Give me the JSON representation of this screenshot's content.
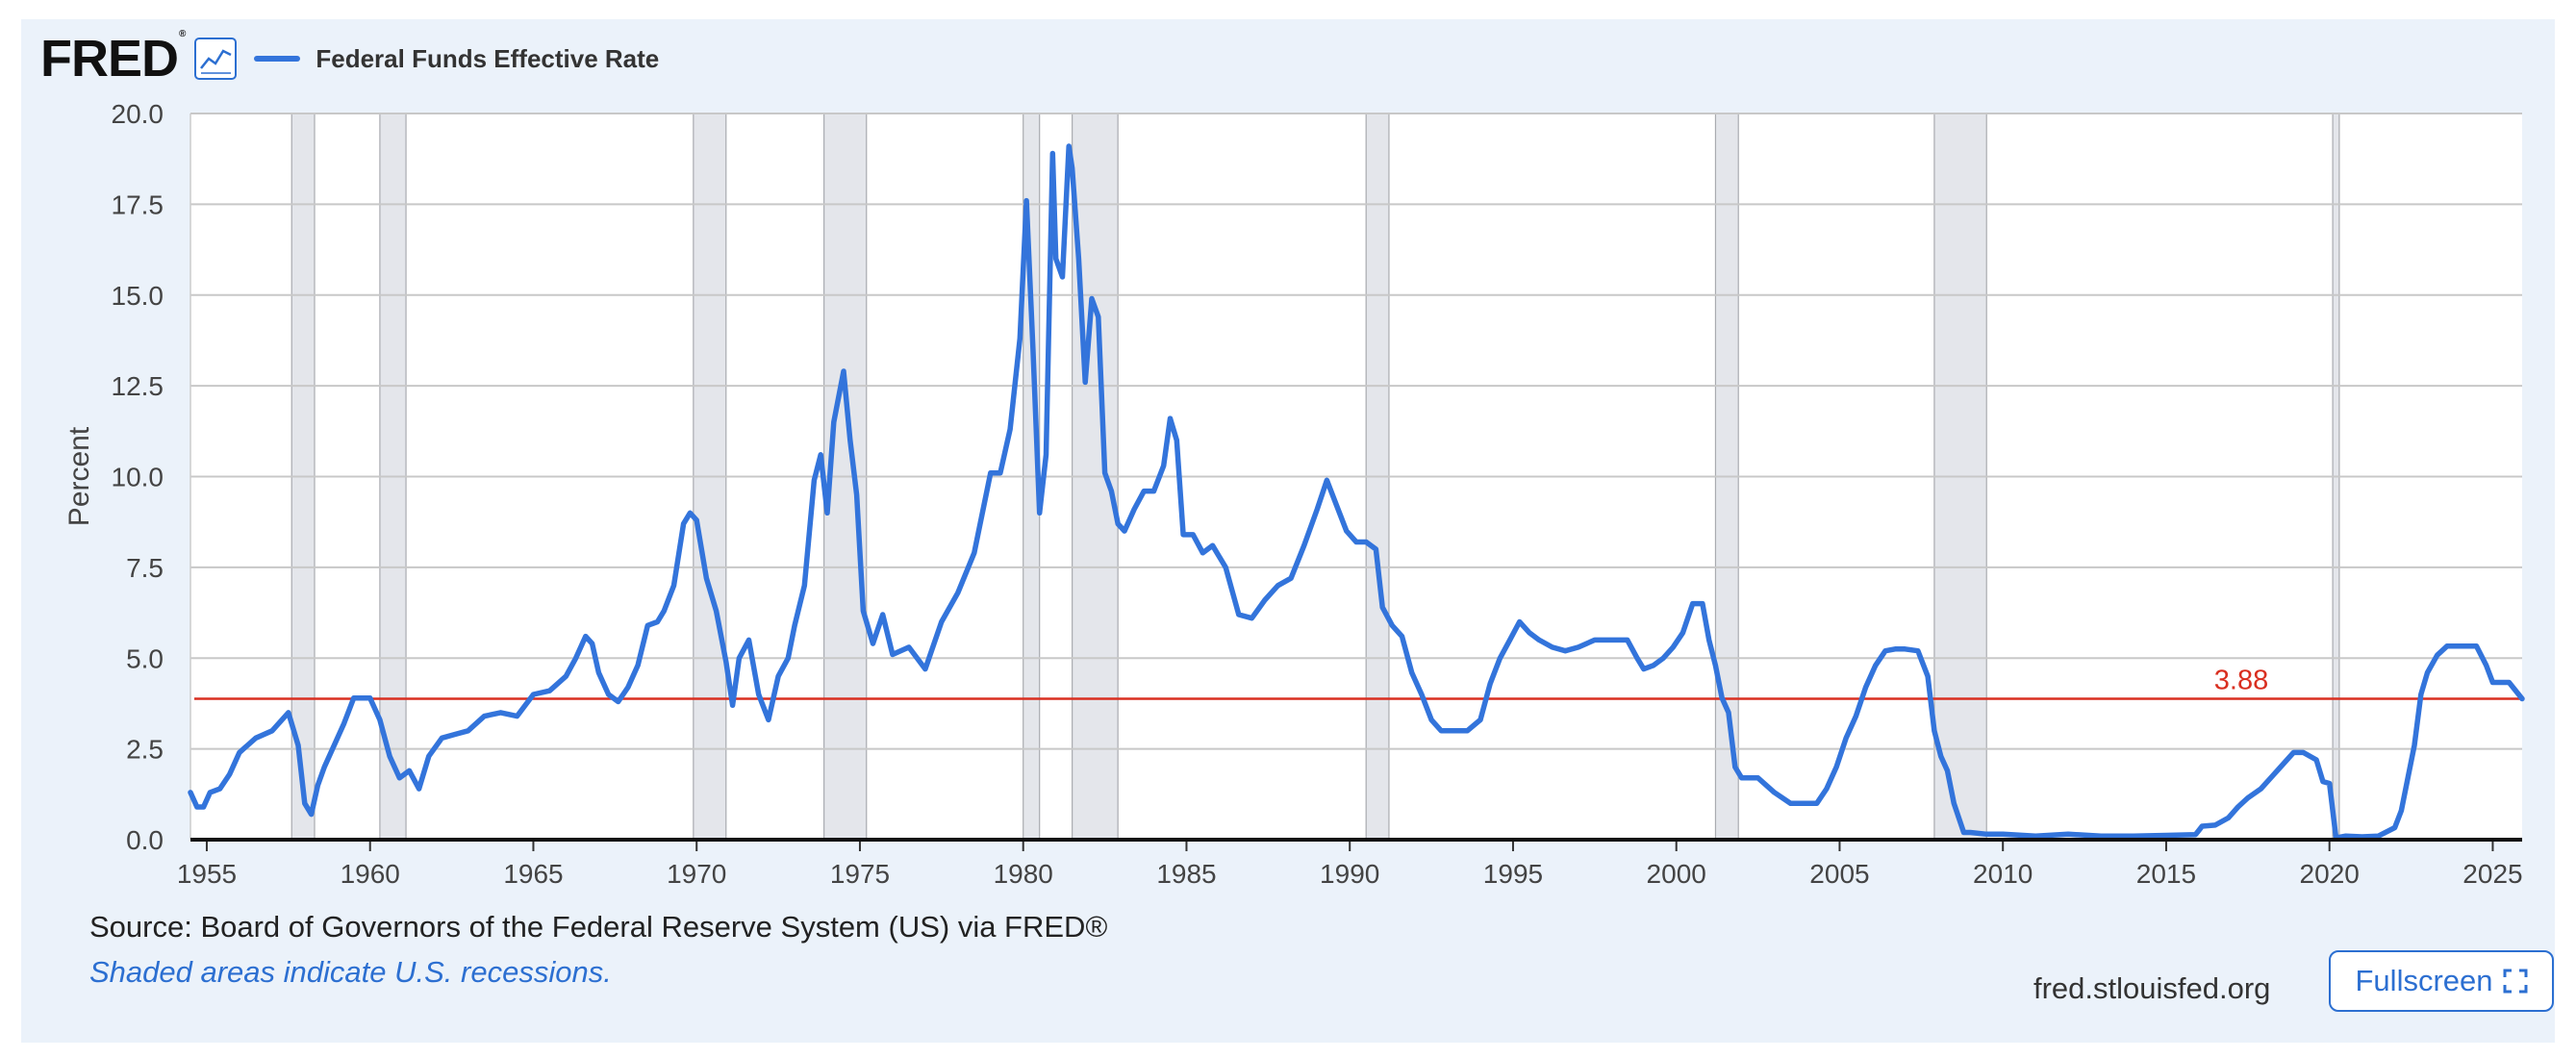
{
  "header": {
    "logo_text": "FRED",
    "logo_mark": "®",
    "graph_icon": "line-graph-icon",
    "legend_label": "Federal Funds Effective Rate"
  },
  "footer": {
    "source": "Source: Board of Governors of the Federal Reserve System (US) via FRED®",
    "note": "Shaded areas indicate U.S. recessions.",
    "site": "fred.stlouisfed.org",
    "fullscreen_label": "Fullscreen",
    "fullscreen_icon": "fullscreen-icon"
  },
  "colors": {
    "series": "#3374db",
    "reference_line": "#d92f20",
    "recession_fill": "#e4e6eb",
    "grid": "#c8c8c8",
    "panel_bg": "#ebf2fa"
  },
  "chart_data": {
    "type": "line",
    "title": "",
    "xlabel": "",
    "ylabel": "Percent",
    "xlim": [
      1954.5,
      2025.9
    ],
    "ylim": [
      0,
      20
    ],
    "yticks": [
      "0.0",
      "2.5",
      "5.0",
      "7.5",
      "10.0",
      "12.5",
      "15.0",
      "17.5",
      "20.0"
    ],
    "xticks": [
      "1955",
      "1960",
      "1965",
      "1970",
      "1975",
      "1980",
      "1985",
      "1990",
      "1995",
      "2000",
      "2005",
      "2010",
      "2015",
      "2020",
      "2025"
    ],
    "grid": true,
    "legend": "top-left",
    "reference_line": {
      "value": 3.88,
      "label": "3.88"
    },
    "recessions": [
      [
        1957.6,
        1958.3
      ],
      [
        1960.3,
        1961.1
      ],
      [
        1969.9,
        1970.9
      ],
      [
        1973.9,
        1975.2
      ],
      [
        1980.0,
        1980.5
      ],
      [
        1981.5,
        1982.9
      ],
      [
        1990.5,
        1991.2
      ],
      [
        2001.2,
        2001.9
      ],
      [
        2007.9,
        2009.5
      ],
      [
        2020.1,
        2020.3
      ]
    ],
    "series": [
      {
        "name": "Federal Funds Effective Rate",
        "x": [
          1954.5,
          1954.7,
          1954.9,
          1955.1,
          1955.4,
          1955.7,
          1956.0,
          1956.5,
          1957.0,
          1957.5,
          1957.8,
          1958.0,
          1958.2,
          1958.4,
          1958.6,
          1958.9,
          1959.2,
          1959.5,
          1959.8,
          1960.0,
          1960.3,
          1960.6,
          1960.9,
          1961.2,
          1961.5,
          1961.8,
          1962.2,
          1962.6,
          1963.0,
          1963.5,
          1964.0,
          1964.5,
          1965.0,
          1965.5,
          1966.0,
          1966.3,
          1966.6,
          1966.8,
          1967.0,
          1967.3,
          1967.6,
          1967.9,
          1968.2,
          1968.5,
          1968.8,
          1969.0,
          1969.3,
          1969.6,
          1969.8,
          1970.0,
          1970.3,
          1970.6,
          1970.9,
          1971.1,
          1971.3,
          1971.6,
          1971.9,
          1972.2,
          1972.5,
          1972.8,
          1973.0,
          1973.3,
          1973.6,
          1973.8,
          1974.0,
          1974.2,
          1974.5,
          1974.7,
          1974.9,
          1975.1,
          1975.4,
          1975.7,
          1976.0,
          1976.5,
          1977.0,
          1977.5,
          1978.0,
          1978.5,
          1979.0,
          1979.3,
          1979.6,
          1979.9,
          1980.1,
          1980.3,
          1980.5,
          1980.7,
          1980.9,
          1981.0,
          1981.2,
          1981.4,
          1981.5,
          1981.7,
          1981.9,
          1982.1,
          1982.3,
          1982.5,
          1982.7,
          1982.9,
          1983.1,
          1983.4,
          1983.7,
          1984.0,
          1984.3,
          1984.5,
          1984.7,
          1984.9,
          1985.2,
          1985.5,
          1985.8,
          1986.2,
          1986.6,
          1987.0,
          1987.4,
          1987.8,
          1988.2,
          1988.6,
          1989.0,
          1989.3,
          1989.6,
          1989.9,
          1990.2,
          1990.5,
          1990.8,
          1991.0,
          1991.3,
          1991.6,
          1991.9,
          1992.2,
          1992.5,
          1992.8,
          1993.2,
          1993.6,
          1994.0,
          1994.3,
          1994.6,
          1994.9,
          1995.2,
          1995.5,
          1995.8,
          1996.2,
          1996.6,
          1997.0,
          1997.5,
          1998.0,
          1998.5,
          1998.8,
          1999.0,
          1999.3,
          1999.6,
          1999.9,
          2000.2,
          2000.5,
          2000.8,
          2001.0,
          2001.2,
          2001.4,
          2001.6,
          2001.8,
          2002.0,
          2002.5,
          2003.0,
          2003.5,
          2004.0,
          2004.3,
          2004.6,
          2004.9,
          2005.2,
          2005.5,
          2005.8,
          2006.1,
          2006.4,
          2006.7,
          2007.0,
          2007.4,
          2007.7,
          2007.9,
          2008.1,
          2008.3,
          2008.5,
          2008.8,
          2009.0,
          2009.5,
          2010.0,
          2011.0,
          2012.0,
          2013.0,
          2014.0,
          2015.0,
          2015.9,
          2016.1,
          2016.5,
          2016.9,
          2017.2,
          2017.5,
          2017.9,
          2018.2,
          2018.5,
          2018.9,
          2019.2,
          2019.6,
          2019.8,
          2020.0,
          2020.2,
          2020.5,
          2021.0,
          2021.5,
          2022.0,
          2022.2,
          2022.4,
          2022.6,
          2022.8,
          2023.0,
          2023.3,
          2023.6,
          2024.0,
          2024.5,
          2024.8,
          2025.0,
          2025.5,
          2025.9
        ],
        "values": [
          1.3,
          0.9,
          0.9,
          1.3,
          1.4,
          1.8,
          2.4,
          2.8,
          3.0,
          3.5,
          2.6,
          1.0,
          0.7,
          1.5,
          2.0,
          2.6,
          3.2,
          3.9,
          3.9,
          3.9,
          3.3,
          2.3,
          1.7,
          1.9,
          1.4,
          2.3,
          2.8,
          2.9,
          3.0,
          3.4,
          3.5,
          3.4,
          4.0,
          4.1,
          4.5,
          5.0,
          5.6,
          5.4,
          4.6,
          4.0,
          3.8,
          4.2,
          4.8,
          5.9,
          6.0,
          6.3,
          7.0,
          8.7,
          9.0,
          8.8,
          7.2,
          6.3,
          4.9,
          3.7,
          5.0,
          5.5,
          4.0,
          3.3,
          4.5,
          5.0,
          5.9,
          7.0,
          9.9,
          10.6,
          9.0,
          11.5,
          12.9,
          11.0,
          9.5,
          6.3,
          5.4,
          6.2,
          5.1,
          5.3,
          4.7,
          6.0,
          6.8,
          7.9,
          10.1,
          10.1,
          11.3,
          13.8,
          17.6,
          13.5,
          9.0,
          10.6,
          18.9,
          16.0,
          15.5,
          19.1,
          18.5,
          16.0,
          12.6,
          14.9,
          14.4,
          10.1,
          9.6,
          8.7,
          8.5,
          9.1,
          9.6,
          9.6,
          10.3,
          11.6,
          11.0,
          8.4,
          8.4,
          7.9,
          8.1,
          7.5,
          6.2,
          6.1,
          6.6,
          7.0,
          7.2,
          8.1,
          9.1,
          9.9,
          9.2,
          8.5,
          8.2,
          8.2,
          8.0,
          6.4,
          5.9,
          5.6,
          4.6,
          4.0,
          3.3,
          3.0,
          3.0,
          3.0,
          3.3,
          4.3,
          5.0,
          5.5,
          6.0,
          5.7,
          5.5,
          5.3,
          5.2,
          5.3,
          5.5,
          5.5,
          5.5,
          5.0,
          4.7,
          4.8,
          5.0,
          5.3,
          5.7,
          6.5,
          6.5,
          5.5,
          4.8,
          3.9,
          3.5,
          2.0,
          1.7,
          1.7,
          1.3,
          1.0,
          1.0,
          1.0,
          1.4,
          2.0,
          2.8,
          3.4,
          4.2,
          4.8,
          5.2,
          5.25,
          5.25,
          5.2,
          4.5,
          3.0,
          2.3,
          1.9,
          1.0,
          0.2,
          0.2,
          0.15,
          0.15,
          0.1,
          0.15,
          0.1,
          0.1,
          0.12,
          0.14,
          0.37,
          0.4,
          0.6,
          0.9,
          1.15,
          1.4,
          1.7,
          2.0,
          2.4,
          2.4,
          2.2,
          1.6,
          1.55,
          0.05,
          0.1,
          0.08,
          0.1,
          0.33,
          0.8,
          1.7,
          2.6,
          4.0,
          4.6,
          5.08,
          5.33,
          5.33,
          5.33,
          4.8,
          4.33,
          4.33,
          3.88
        ]
      }
    ]
  }
}
